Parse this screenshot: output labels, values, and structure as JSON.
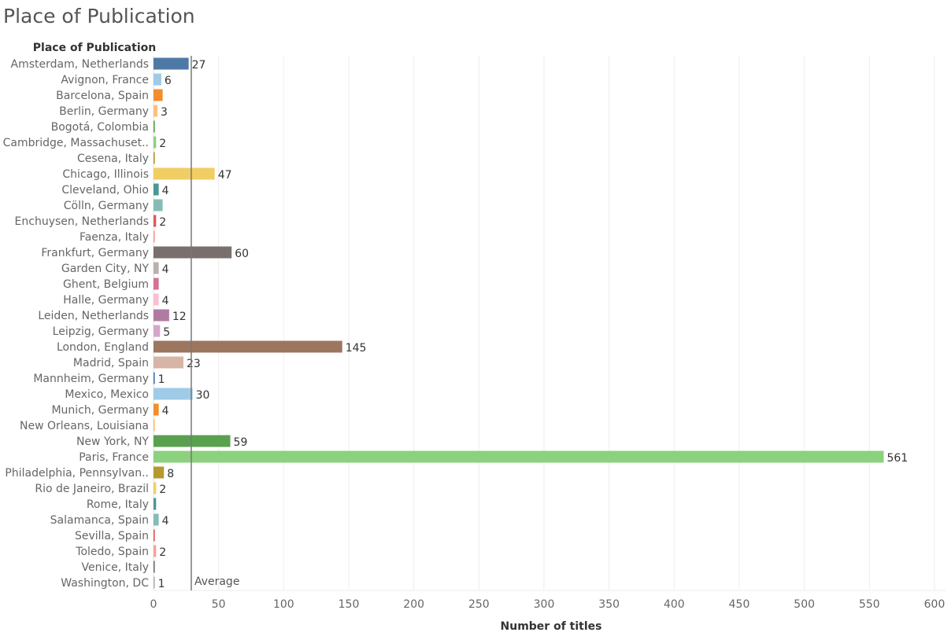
{
  "page": {
    "title": "Place of Publication"
  },
  "chart_data": {
    "type": "bar",
    "orientation": "horizontal",
    "title": "Place of Publication",
    "ylabel": "Place of Publication",
    "xlabel": "Number of titles",
    "xlim": [
      0,
      600
    ],
    "x_ticks": [
      0,
      50,
      100,
      150,
      200,
      250,
      300,
      350,
      400,
      450,
      500,
      550,
      600
    ],
    "grid": true,
    "reference_line": {
      "label": "Average",
      "value": 29
    },
    "categories": [
      "Amsterdam, Netherlands",
      "Avignon, France",
      "Barcelona, Spain",
      "Berlin, Germany",
      "Bogotá, Colombia",
      "Cambridge, Massachuset..",
      "Cesena, Italy",
      "Chicago, Illinois",
      "Cleveland, Ohio",
      "Cölln, Germany",
      "Enchuysen, Netherlands",
      "Faenza, Italy",
      "Frankfurt, Germany",
      "Garden City, NY",
      "Ghent, Belgium",
      "Halle, Germany",
      "Leiden, Netherlands",
      "Leipzig, Germany",
      "London, England",
      "Madrid, Spain",
      "Mannheim, Germany",
      "Mexico, Mexico",
      "Munich, Germany",
      "New Orleans, Louisiana",
      "New York, NY",
      "Paris, France",
      "Philadelphia, Pennsylvan..",
      "Rio de Janeiro, Brazil",
      "Rome, Italy",
      "Salamanca, Spain",
      "Sevilla, Spain",
      "Toledo, Spain",
      "Venice, Italy",
      "Washington, DC"
    ],
    "values": [
      27,
      6,
      7,
      3,
      1,
      2,
      1,
      47,
      4,
      7,
      2,
      1,
      60,
      4,
      4,
      4,
      12,
      5,
      145,
      23,
      1,
      30,
      4,
      1,
      59,
      561,
      8,
      2,
      2,
      4,
      1,
      2,
      1,
      1
    ],
    "value_labels": [
      "27",
      "6",
      "",
      "3",
      "",
      "2",
      "",
      "47",
      "4",
      "",
      "2",
      "",
      "60",
      "4",
      "",
      "4",
      "12",
      "5",
      "145",
      "23",
      "1",
      "30",
      "4",
      "",
      "59",
      "561",
      "8",
      "2",
      "",
      "4",
      "",
      "2",
      "",
      "1"
    ],
    "colors": [
      "#4E79A7",
      "#A0CBE8",
      "#F28E2B",
      "#FFBE7D",
      "#59A14F",
      "#8CD17D",
      "#B6992D",
      "#F1CE63",
      "#499894",
      "#86BCB6",
      "#E15759",
      "#FF9D9A",
      "#79706E",
      "#BAB0AC",
      "#D37295",
      "#FABFD2",
      "#B07AA1",
      "#D4A6C8",
      "#9D7660",
      "#D7B5A6",
      "#4E79A7",
      "#A0CBE8",
      "#F28E2B",
      "#FFBE7D",
      "#59A14F",
      "#8CD17D",
      "#B6992D",
      "#F1CE63",
      "#499894",
      "#86BCB6",
      "#E15759",
      "#FF9D9A",
      "#79706E",
      "#BAB0AC"
    ]
  }
}
